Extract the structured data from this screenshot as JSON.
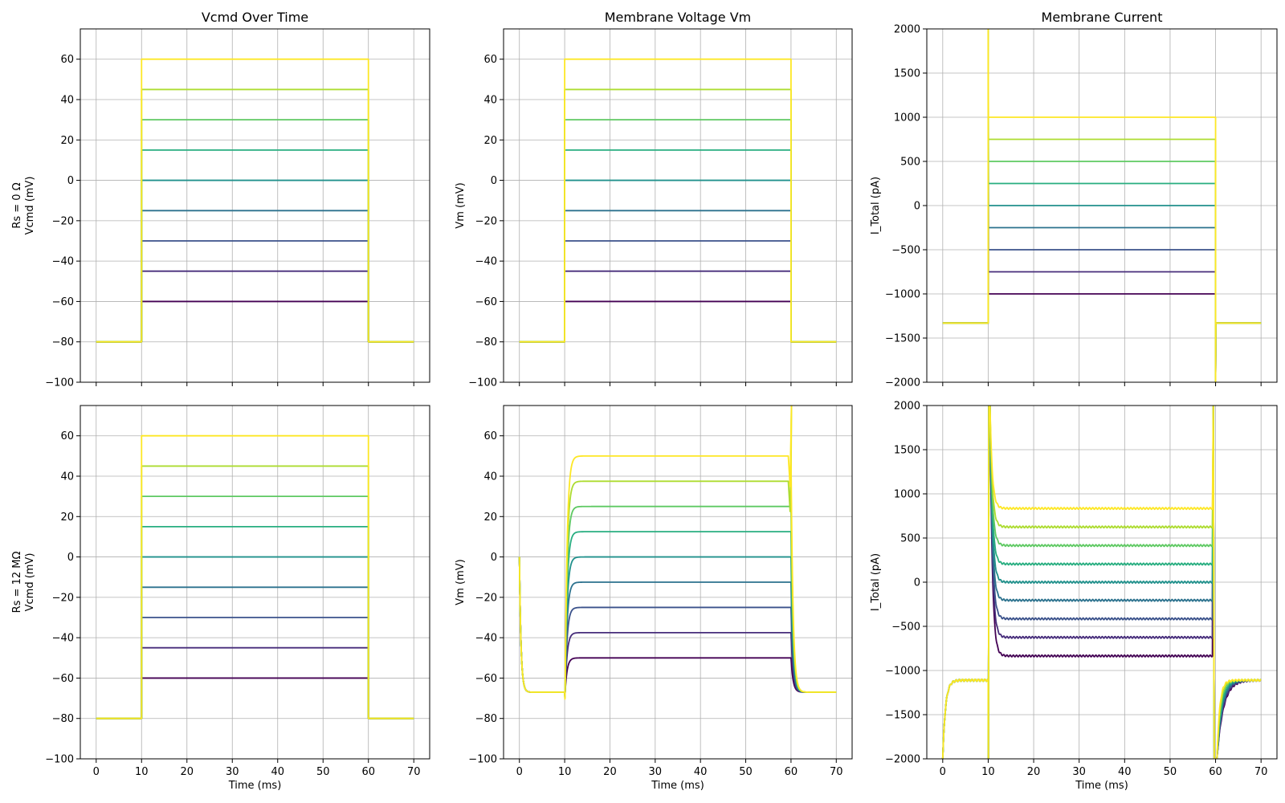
{
  "colors": [
    "#440154",
    "#472d7b",
    "#3b528b",
    "#2c728e",
    "#21918c",
    "#28ae80",
    "#5ec962",
    "#addc30",
    "#fde725"
  ],
  "panels": [
    {
      "id": "p11",
      "row": 0,
      "col": 0,
      "title": "Vcmd Over Time",
      "row_label": "Rs = 0 Ω",
      "ylabel": "Vcmd (mV)",
      "xlabel": "",
      "xlim": [
        -3.5,
        73.5
      ],
      "ylim": [
        -100,
        75
      ],
      "xticks": [
        0,
        10,
        20,
        30,
        40,
        50,
        60,
        70
      ],
      "yticks": [
        -100,
        -80,
        -60,
        -40,
        -20,
        0,
        20,
        40,
        60
      ],
      "show_xtick_labels": false
    },
    {
      "id": "p12",
      "row": 0,
      "col": 1,
      "title": "Membrane Voltage Vm",
      "row_label": "",
      "ylabel": "Vm (mV)",
      "xlabel": "",
      "xlim": [
        -3.5,
        73.5
      ],
      "ylim": [
        -100,
        75
      ],
      "xticks": [
        0,
        10,
        20,
        30,
        40,
        50,
        60,
        70
      ],
      "yticks": [
        -100,
        -80,
        -60,
        -40,
        -20,
        0,
        20,
        40,
        60
      ],
      "show_xtick_labels": false
    },
    {
      "id": "p13",
      "row": 0,
      "col": 2,
      "title": "Membrane Current",
      "row_label": "",
      "ylabel": "I_Total (pA)",
      "xlabel": "",
      "xlim": [
        -3.5,
        73.5
      ],
      "ylim": [
        -2000,
        2000
      ],
      "xticks": [
        0,
        10,
        20,
        30,
        40,
        50,
        60,
        70
      ],
      "yticks": [
        -2000,
        -1500,
        -1000,
        -500,
        0,
        500,
        1000,
        1500,
        2000
      ],
      "show_xtick_labels": false
    },
    {
      "id": "p21",
      "row": 1,
      "col": 0,
      "title": "",
      "row_label": "Rs = 12 MΩ",
      "ylabel": "Vcmd (mV)",
      "xlabel": "Time (ms)",
      "xlim": [
        -3.5,
        73.5
      ],
      "ylim": [
        -100,
        75
      ],
      "xticks": [
        0,
        10,
        20,
        30,
        40,
        50,
        60,
        70
      ],
      "yticks": [
        -100,
        -80,
        -60,
        -40,
        -20,
        0,
        20,
        40,
        60
      ],
      "show_xtick_labels": true
    },
    {
      "id": "p22",
      "row": 1,
      "col": 1,
      "title": "",
      "row_label": "",
      "ylabel": "Vm (mV)",
      "xlabel": "Time (ms)",
      "xlim": [
        -3.5,
        73.5
      ],
      "ylim": [
        -100,
        75
      ],
      "xticks": [
        0,
        10,
        20,
        30,
        40,
        50,
        60,
        70
      ],
      "yticks": [
        -100,
        -80,
        -60,
        -40,
        -20,
        0,
        20,
        40,
        60
      ],
      "show_xtick_labels": true
    },
    {
      "id": "p23",
      "row": 1,
      "col": 2,
      "title": "",
      "row_label": "",
      "ylabel": "I_Total (pA)",
      "xlabel": "Time (ms)",
      "xlim": [
        -3.5,
        73.5
      ],
      "ylim": [
        -2000,
        2000
      ],
      "xticks": [
        0,
        10,
        20,
        30,
        40,
        50,
        60,
        70
      ],
      "yticks": [
        -2000,
        -1500,
        -1000,
        -500,
        0,
        500,
        1000,
        1500,
        2000
      ],
      "show_xtick_labels": true
    }
  ],
  "chart_data": {
    "type": "line",
    "grid": true,
    "series_levels": {
      "vcmd_mV": [
        -60,
        -45,
        -30,
        -15,
        0,
        15,
        30,
        45,
        60
      ],
      "vm_rs12_mV": [
        -50,
        -37.5,
        -25,
        -12.5,
        0,
        12.5,
        25,
        37.5,
        50
      ],
      "i_rs0_pA": [
        -1000,
        -750,
        -500,
        -250,
        0,
        250,
        500,
        750,
        1000
      ],
      "i_rs12_pA": [
        -835,
        -625,
        -415,
        -205,
        0,
        205,
        415,
        625,
        835
      ]
    },
    "protocol": {
      "holding_mV": -80,
      "step_start_ms": 10,
      "step_end_ms": 60,
      "duration_ms": 70,
      "holding_current_rs0_pA": -1330,
      "vm_rest_rs12_mV": -67,
      "holding_current_rs12_pA": -1110
    }
  }
}
